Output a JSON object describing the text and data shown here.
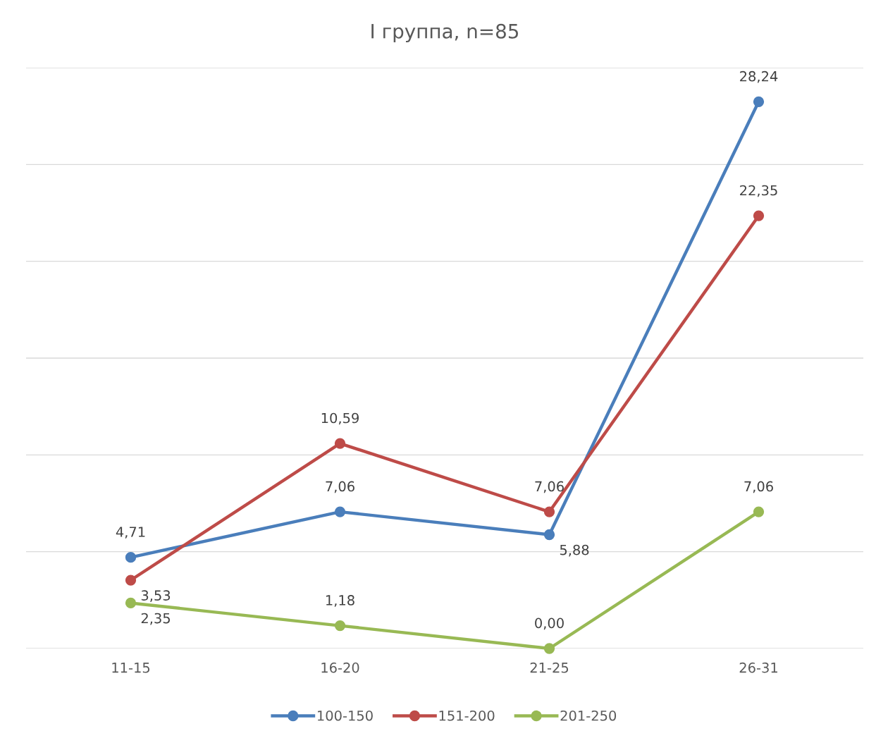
{
  "chart_data": {
    "type": "line",
    "title": "I группа, n=85",
    "categories": [
      "11-15",
      "16-20",
      "21-25",
      "26-31"
    ],
    "series": [
      {
        "name": "100-150",
        "color": "#4a7ebb",
        "values": [
          4.71,
          7.06,
          5.88,
          28.24
        ],
        "value_labels": [
          "4,71",
          "7,06",
          "5,88",
          "28,24"
        ]
      },
      {
        "name": "151-200",
        "color": "#be4b48",
        "values": [
          3.53,
          10.59,
          7.06,
          22.35
        ],
        "value_labels": [
          "3,53",
          "10,59",
          "7,06",
          "22,35"
        ]
      },
      {
        "name": "201-250",
        "color": "#98b954",
        "values": [
          2.35,
          1.18,
          0.0,
          7.06
        ],
        "value_labels": [
          "2,35",
          "1,18",
          "0,00",
          "7,06"
        ]
      }
    ],
    "ylim": [
      0,
      30
    ],
    "yticks": [
      {
        "value": 0,
        "label": null
      },
      {
        "value": 5,
        "label": null
      },
      {
        "value": 10,
        "label": null
      },
      {
        "value": 15,
        "label": null
      },
      {
        "value": 20,
        "label": null
      },
      {
        "value": 25,
        "label": null
      },
      {
        "value": 30,
        "label": null
      }
    ],
    "grid": "y",
    "tick_labels": "x",
    "legend": "bottom",
    "marker": "circle",
    "line_style": "solid"
  }
}
